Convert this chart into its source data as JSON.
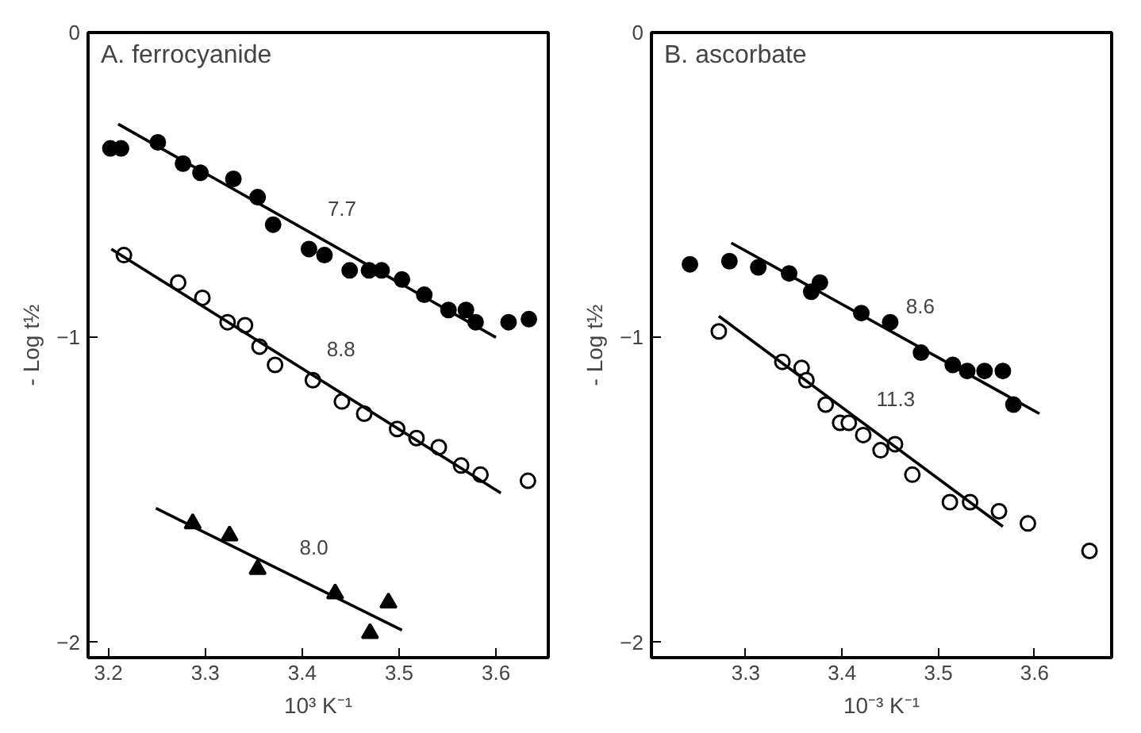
{
  "chart_data": [
    {
      "type": "scatter",
      "title": "A. ferrocyanide",
      "xlabel": "10³ K⁻¹",
      "ylabel": "- Log t½",
      "xlim": [
        3.179,
        3.654
      ],
      "ylim": [
        -2.05,
        0
      ],
      "xticks": [
        3.2,
        3.3,
        3.4,
        3.5,
        3.6
      ],
      "yticks": [
        0,
        -1,
        -2
      ],
      "grid": false,
      "series": [
        {
          "marker": "circle",
          "color": "#000000",
          "x": [
            3.202,
            3.213,
            3.251,
            3.277,
            3.295,
            3.329,
            3.354,
            3.37,
            3.407,
            3.423,
            3.449,
            3.469,
            3.482,
            3.503,
            3.526,
            3.551,
            3.569,
            3.579,
            3.613,
            3.634
          ],
          "values": [
            -0.38,
            -0.38,
            -0.36,
            -0.43,
            -0.46,
            -0.48,
            -0.54,
            -0.63,
            -0.71,
            -0.73,
            -0.78,
            -0.78,
            -0.78,
            -0.81,
            -0.86,
            -0.91,
            -0.91,
            -0.95,
            -0.95,
            -0.94
          ]
        },
        {
          "marker": "circle",
          "color": "#ffffff",
          "x": [
            3.216,
            3.272,
            3.297,
            3.323,
            3.341,
            3.356,
            3.372,
            3.411,
            3.441,
            3.464,
            3.498,
            3.518,
            3.541,
            3.564,
            3.584,
            3.633
          ],
          "values": [
            -0.73,
            -0.82,
            -0.87,
            -0.95,
            -0.96,
            -1.03,
            -1.09,
            -1.14,
            -1.21,
            -1.25,
            -1.3,
            -1.33,
            -1.36,
            -1.42,
            -1.45,
            -1.47
          ]
        },
        {
          "marker": "triangle",
          "color": "#000000",
          "x": [
            3.287,
            3.325,
            3.354,
            3.434,
            3.489,
            3.47
          ],
          "values": [
            -1.61,
            -1.65,
            -1.76,
            -1.84,
            -1.87,
            -1.97
          ]
        },
        {
          "type": "line",
          "color": "#000000",
          "x": [
            3.21,
            3.6
          ],
          "values": [
            -0.3,
            -1.0
          ]
        },
        {
          "type": "line",
          "color": "#000000",
          "x": [
            3.203,
            3.605
          ],
          "values": [
            -0.71,
            -1.51
          ]
        },
        {
          "type": "line",
          "color": "#000000",
          "x": [
            3.249,
            3.503
          ],
          "values": [
            -1.56,
            -1.96
          ]
        }
      ],
      "annotations": [
        "7.7",
        "8.8",
        "8.0"
      ]
    },
    {
      "type": "scatter",
      "title": "B. ascorbate",
      "xlabel": "10⁻³ K⁻¹",
      "ylabel": "- Log t½",
      "xlim": [
        3.202,
        3.68
      ],
      "ylim": [
        -2.05,
        0
      ],
      "xticks": [
        3.3,
        3.4,
        3.5,
        3.6
      ],
      "yticks": [
        0,
        -1,
        -2
      ],
      "grid": false,
      "series": [
        {
          "marker": "circle",
          "color": "#000000",
          "x": [
            3.242,
            3.283,
            3.313,
            3.345,
            3.368,
            3.377,
            3.42,
            3.45,
            3.482,
            3.515,
            3.53,
            3.548,
            3.567,
            3.578
          ],
          "values": [
            -0.76,
            -0.75,
            -0.77,
            -0.79,
            -0.85,
            -0.82,
            -0.92,
            -0.95,
            -1.05,
            -1.09,
            -1.11,
            -1.11,
            -1.11,
            -1.22
          ]
        },
        {
          "marker": "circle",
          "color": "#ffffff",
          "x": [
            3.272,
            3.338,
            3.358,
            3.363,
            3.383,
            3.398,
            3.407,
            3.422,
            3.44,
            3.455,
            3.473,
            3.512,
            3.533,
            3.563,
            3.593,
            3.657
          ],
          "values": [
            -0.98,
            -1.08,
            -1.1,
            -1.14,
            -1.22,
            -1.28,
            -1.28,
            -1.32,
            -1.37,
            -1.35,
            -1.45,
            -1.54,
            -1.54,
            -1.57,
            -1.61,
            -1.7
          ]
        },
        {
          "type": "line",
          "color": "#000000",
          "x": [
            3.285,
            3.605
          ],
          "values": [
            -0.69,
            -1.25
          ]
        },
        {
          "type": "line",
          "color": "#000000",
          "x": [
            3.272,
            3.567
          ],
          "values": [
            -0.93,
            -1.62
          ]
        }
      ],
      "annotations": [
        "8.6",
        "11.3"
      ]
    }
  ]
}
